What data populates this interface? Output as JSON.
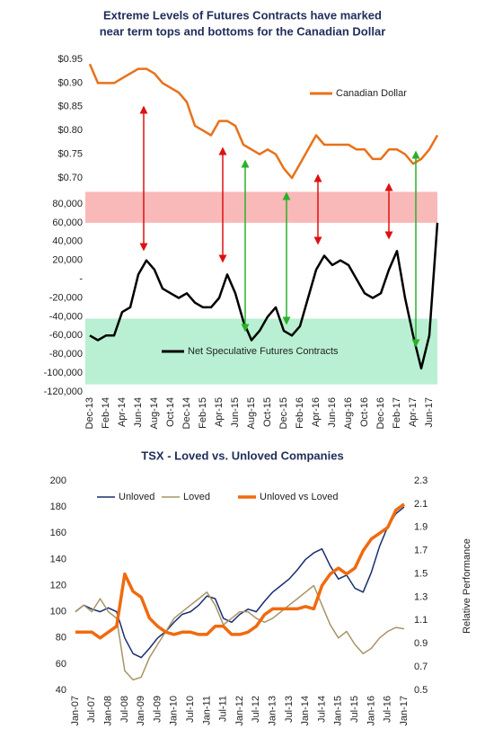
{
  "chart_data": [
    {
      "type": "line",
      "title": [
        "Extreme Levels of Futures Contracts have marked",
        "near term tops and bottoms for the Canadian Dollar"
      ],
      "categories": [
        "Dec-13",
        null,
        "Feb-14",
        null,
        "Apr-14",
        null,
        "Jun-14",
        null,
        "Aug-14",
        null,
        "Oct-14",
        null,
        "Dec-14",
        null,
        "Feb-15",
        null,
        "Apr-15",
        null,
        "Jun-15",
        null,
        "Aug-15",
        null,
        "Oct-15",
        null,
        "Dec-15",
        null,
        "Feb-16",
        null,
        "Apr-16",
        null,
        "Jun-16",
        null,
        "Aug-16",
        null,
        "Oct-16",
        null,
        "Dec-16",
        null,
        "Feb-17",
        null,
        "Apr-17",
        null,
        "Jun-17",
        null
      ],
      "panels": [
        {
          "ylim": [
            0.7,
            0.95
          ],
          "yticks": [
            {
              "value": 0.7,
              "label": "$0.70"
            },
            {
              "value": 0.75,
              "label": "$0.75"
            },
            {
              "value": 0.8,
              "label": "$0.80"
            },
            {
              "value": 0.85,
              "label": "$0.85"
            },
            {
              "value": 0.9,
              "label": "$0.90"
            },
            {
              "value": 0.95,
              "label": "$0.95"
            }
          ],
          "series": [
            {
              "name": "Canadian Dollar",
              "color": "#e8711a",
              "values": [
                0.94,
                0.9,
                0.9,
                0.9,
                0.91,
                0.92,
                0.93,
                0.93,
                0.92,
                0.9,
                0.89,
                0.88,
                0.86,
                0.81,
                0.8,
                0.79,
                0.82,
                0.82,
                0.81,
                0.77,
                0.76,
                0.75,
                0.76,
                0.75,
                0.72,
                0.7,
                0.73,
                0.76,
                0.79,
                0.77,
                0.77,
                0.77,
                0.77,
                0.76,
                0.76,
                0.74,
                0.74,
                0.76,
                0.76,
                0.75,
                0.73,
                0.74,
                0.76,
                0.79
              ]
            }
          ]
        },
        {
          "ylim": [
            -120000,
            80000
          ],
          "yticks": [
            {
              "value": -120000,
              "label": "-120,000"
            },
            {
              "value": -100000,
              "label": "-100,000"
            },
            {
              "value": -80000,
              "label": "-80,000"
            },
            {
              "value": -60000,
              "label": "-60,000"
            },
            {
              "value": -40000,
              "label": "-40,000"
            },
            {
              "value": -20000,
              "label": "-20,000"
            },
            {
              "value": 0,
              "label": "-"
            },
            {
              "value": 20000,
              "label": "20,000"
            },
            {
              "value": 40000,
              "label": "40,000"
            },
            {
              "value": 60000,
              "label": "60,000"
            },
            {
              "value": 80000,
              "label": "80,000"
            }
          ],
          "bands": [
            {
              "from": 60000,
              "to": 93000,
              "color": "#f7a8a8"
            },
            {
              "from": -112000,
              "to": -42000,
              "color": "#a8ecc8"
            }
          ],
          "series": [
            {
              "name": "Net Speculative Futures Contracts",
              "color": "#000000",
              "values": [
                -60000,
                -65000,
                -60000,
                -60000,
                -35000,
                -30000,
                5000,
                20000,
                10000,
                -10000,
                -15000,
                -20000,
                -15000,
                -25000,
                -30000,
                -30000,
                -20000,
                5000,
                -15000,
                -45000,
                -65000,
                -55000,
                -40000,
                -30000,
                -55000,
                -60000,
                -50000,
                -20000,
                10000,
                25000,
                15000,
                20000,
                15000,
                0,
                -15000,
                -20000,
                -15000,
                10000,
                30000,
                -20000,
                -60000,
                -95000,
                -60000,
                60000
              ]
            }
          ]
        }
      ]
    },
    {
      "type": "line",
      "title": "TSX - Loved vs. Unloved Companies",
      "categories": [
        "Jan-07",
        null,
        "Jul-07",
        null,
        "Jan-08",
        null,
        "Jul-08",
        null,
        "Jan-09",
        null,
        "Jul-09",
        null,
        "Jan-10",
        null,
        "Jul-10",
        null,
        "Jan-11",
        null,
        "Jul-11",
        null,
        "Jan-12",
        null,
        "Jul-12",
        null,
        "Jan-13",
        null,
        "Jul-13",
        null,
        "Jan-14",
        null,
        "Jul-14",
        null,
        "Jan-15",
        null,
        "Jul-15",
        null,
        "Jan-16",
        null,
        "Jul-16",
        null,
        "Jan-17"
      ],
      "ylim": [
        40,
        200
      ],
      "yticks": [
        40,
        60,
        80,
        100,
        120,
        140,
        160,
        180,
        200
      ],
      "y2lim": [
        0.5,
        2.3
      ],
      "y2ticks": [
        0.5,
        0.7,
        0.9,
        1.1,
        1.3,
        1.5,
        1.7,
        1.9,
        2.1,
        2.3
      ],
      "y2label": "Relative Performance",
      "series": [
        {
          "name": "Unloved",
          "color": "#1a2e6e",
          "width": 1.5,
          "values": [
            100,
            105,
            102,
            100,
            103,
            100,
            80,
            68,
            65,
            72,
            80,
            85,
            92,
            98,
            100,
            105,
            112,
            110,
            95,
            92,
            98,
            102,
            100,
            108,
            115,
            120,
            125,
            132,
            140,
            145,
            148,
            135,
            125,
            128,
            118,
            115,
            130,
            150,
            165,
            175,
            180
          ]
        },
        {
          "name": "Loved",
          "color": "#a89466",
          "width": 1.5,
          "values": [
            100,
            105,
            100,
            110,
            100,
            95,
            55,
            48,
            50,
            65,
            75,
            85,
            95,
            100,
            105,
            110,
            115,
            105,
            90,
            95,
            100,
            100,
            95,
            92,
            95,
            100,
            105,
            110,
            115,
            120,
            105,
            90,
            80,
            85,
            75,
            68,
            72,
            80,
            85,
            88,
            87
          ]
        },
        {
          "name": "Unloved vs Loved",
          "color": "#f06a0f",
          "width": 3.5,
          "axis": "y2",
          "values": [
            1.0,
            1.0,
            1.0,
            0.95,
            1.0,
            1.05,
            1.5,
            1.35,
            1.3,
            1.12,
            1.05,
            1.0,
            0.98,
            1.0,
            1.0,
            0.98,
            0.98,
            1.05,
            1.05,
            0.98,
            0.98,
            1.0,
            1.05,
            1.15,
            1.2,
            1.2,
            1.2,
            1.2,
            1.22,
            1.2,
            1.4,
            1.5,
            1.55,
            1.5,
            1.55,
            1.7,
            1.8,
            1.85,
            1.9,
            2.05,
            2.1
          ]
        }
      ]
    }
  ]
}
